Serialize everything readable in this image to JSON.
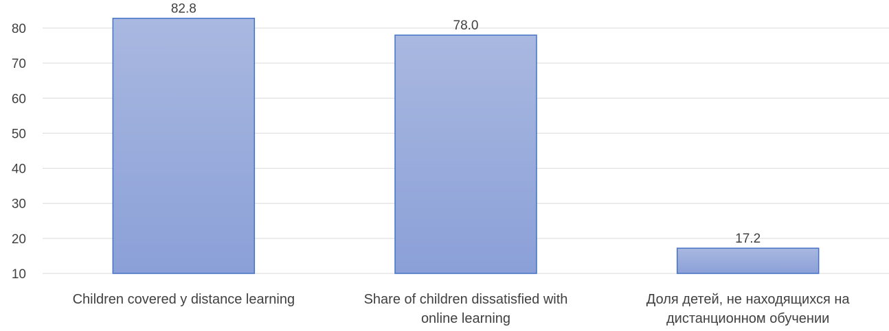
{
  "chart_data": {
    "type": "bar",
    "categories": [
      [
        "Children covered y distance learning"
      ],
      [
        "Share of children dissatisfied with",
        "online learning"
      ],
      [
        "Доля детей, не находящихся на",
        "дистанционном обучении"
      ]
    ],
    "values": [
      82.8,
      78.0,
      17.2
    ],
    "data_labels": [
      "82.8",
      "78.0",
      "17.2"
    ],
    "ylim": [
      10,
      80
    ],
    "yticks": [
      10,
      20,
      30,
      40,
      50,
      60,
      70,
      80
    ],
    "grid": true,
    "legend": "none",
    "colors": {
      "bar_top": "#a9b8e0",
      "bar_bottom": "#8ba0d8",
      "bar_stroke": "#4472c4",
      "grid": "#d9d9d9",
      "text": "#404040"
    }
  }
}
